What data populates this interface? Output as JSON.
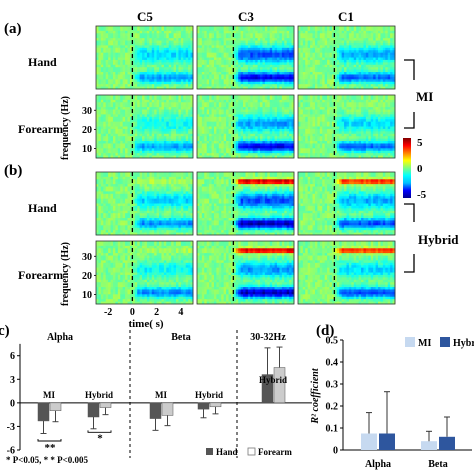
{
  "panel_labels": {
    "a": "(a)",
    "b": "(b)",
    "c": "c)",
    "d": "(d)"
  },
  "channels": [
    "C5",
    "C3",
    "C1"
  ],
  "row_labels": [
    "Hand",
    "Forearm",
    "Hand",
    "Forearm"
  ],
  "groups": {
    "mi": "MI",
    "hybrid": "Hybrid"
  },
  "colorbar": {
    "ticks": [
      "5",
      "0",
      "-5"
    ],
    "stops": [
      "#00008f",
      "#0000ff",
      "#00bfff",
      "#00ffff",
      "#7fff7f",
      "#ffff00",
      "#ff8000",
      "#ff0000",
      "#800000"
    ]
  },
  "spectrogram_axes": {
    "ylabel": "frequency (Hz)",
    "yticks": [
      "30",
      "20",
      "10"
    ],
    "xticks": [
      "-2",
      "0",
      "2",
      "4"
    ],
    "xlabel": "time( s)"
  },
  "chart_data": [
    {
      "type": "heatmap",
      "description_rows": [
        "MI Hand",
        "MI Forearm",
        "Hybrid Hand",
        "Hybrid Forearm"
      ],
      "columns": [
        "C5",
        "C3",
        "C1"
      ],
      "x_range": [
        -3,
        5
      ],
      "y_range": [
        5,
        38
      ],
      "value_range": [
        -5,
        5
      ]
    },
    {
      "type": "bar",
      "ylim": [
        -6,
        8
      ],
      "yticks": [
        "6",
        "3",
        "0",
        "-3",
        "-6"
      ],
      "sections": [
        "Alpha",
        "Beta",
        "30-32Hz"
      ],
      "groups": [
        "MI",
        "Hybrid",
        "MI",
        "Hybrid",
        "Hybrid"
      ],
      "series": [
        {
          "name": "Hand",
          "color": "#555555",
          "values": [
            -2.3,
            -1.8,
            -2.0,
            -0.8,
            3.6
          ],
          "errors": [
            1.6,
            1.5,
            1.5,
            1.1,
            3.4
          ]
        },
        {
          "name": "Forearm",
          "color": "#cccccc",
          "values": [
            -1.0,
            -0.6,
            -1.6,
            -0.5,
            4.5
          ],
          "errors": [
            1.4,
            0.9,
            1.3,
            0.9,
            2.6
          ]
        }
      ],
      "significance": [
        "**",
        "*"
      ],
      "footnote": "* P<0.05, * * P<0.005"
    },
    {
      "type": "bar",
      "ylabel": "R² coefficient",
      "ylim": [
        0,
        0.5
      ],
      "yticks": [
        "0.5",
        "0.4",
        "0.3",
        "0.2",
        "0.1",
        "0"
      ],
      "categories": [
        "Alpha",
        "Beta"
      ],
      "series": [
        {
          "name": "MI",
          "color": "#c6d9f0",
          "values": [
            0.075,
            0.04
          ],
          "errors": [
            0.095,
            0.045
          ]
        },
        {
          "name": "Hybr",
          "color": "#2e569e",
          "values": [
            0.075,
            0.06
          ],
          "errors": [
            0.19,
            0.09
          ]
        }
      ]
    }
  ]
}
